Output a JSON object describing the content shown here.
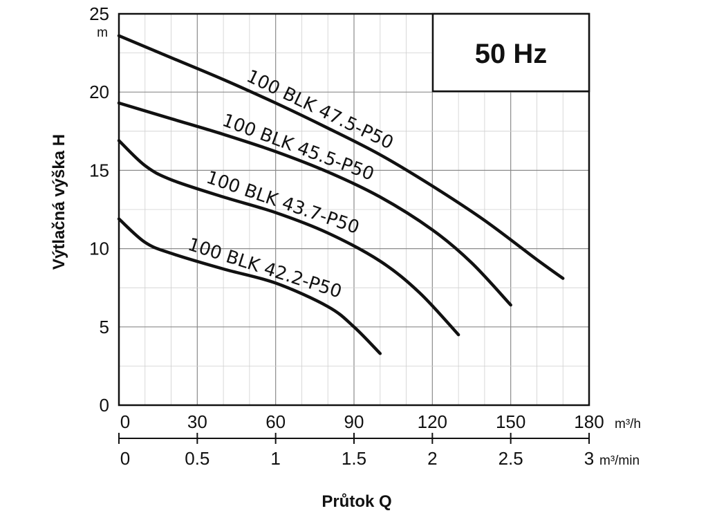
{
  "chart_data": {
    "type": "line",
    "frequency_label": "50 Hz",
    "ylabel": "Výtlačná výška H",
    "yunit": "m",
    "ylim": [
      0,
      25
    ],
    "yticks": [
      "0",
      "5",
      "10",
      "15",
      "20",
      "25"
    ],
    "xlabel": "Průtok Q",
    "x1_unit": "m³/h",
    "x1_lim": [
      0,
      180
    ],
    "x1_ticks": [
      "0",
      "30",
      "60",
      "90",
      "120",
      "150",
      "180"
    ],
    "x2_unit": "m³/min",
    "x2_lim": [
      0,
      3
    ],
    "x2_ticks": [
      "0",
      "0.5",
      "1",
      "1.5",
      "2",
      "2.5",
      "3"
    ],
    "grid": true,
    "series": [
      {
        "name": "100 BLK 47.5-P50",
        "x": [
          0,
          20,
          40,
          60,
          80,
          100,
          120,
          140,
          160,
          170
        ],
        "y": [
          23.6,
          22.2,
          20.8,
          19.3,
          17.7,
          16.0,
          14.0,
          11.8,
          9.3,
          8.1
        ]
      },
      {
        "name": "100 BLK 45.5-P50",
        "x": [
          0,
          20,
          40,
          60,
          80,
          100,
          120,
          135,
          150
        ],
        "y": [
          19.3,
          18.3,
          17.3,
          16.2,
          14.9,
          13.3,
          11.2,
          9.1,
          6.4
        ]
      },
      {
        "name": "100 BLK 43.7-P50",
        "x": [
          0,
          10,
          20,
          40,
          60,
          80,
          100,
          115,
          130
        ],
        "y": [
          16.9,
          15.3,
          14.4,
          13.3,
          12.3,
          11.0,
          9.2,
          7.2,
          4.5
        ]
      },
      {
        "name": "100 BLK 42.2-P50",
        "x": [
          0,
          10,
          20,
          40,
          60,
          80,
          90,
          100
        ],
        "y": [
          11.9,
          10.4,
          9.7,
          8.7,
          7.8,
          6.3,
          5.0,
          3.3
        ]
      }
    ]
  }
}
